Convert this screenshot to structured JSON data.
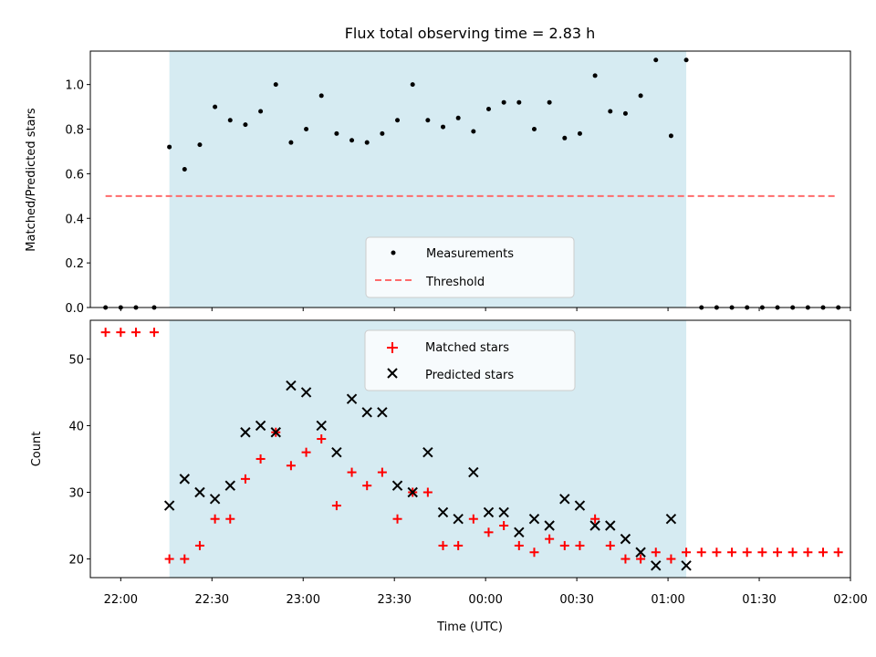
{
  "chart_data": [
    {
      "type": "scatter",
      "title": "Flux total observing time = 2.83 h",
      "ylabel": "Matched/Predicted stars",
      "xlabel": "",
      "xlim": [
        "21:50",
        "02:00"
      ],
      "ylim": [
        0,
        1.15
      ],
      "yticks": [
        "0.0",
        "0.2",
        "0.4",
        "0.6",
        "0.8",
        "1.0"
      ],
      "grid": false,
      "legend_position": "bottom-center",
      "shaded_span": {
        "start": "22:16",
        "end": "01:06",
        "color": "#add8e6"
      },
      "series": [
        {
          "name": "Measurements",
          "marker": "dot",
          "color": "#000000",
          "x": [
            "21:55",
            "22:00",
            "22:05",
            "22:11",
            "22:16",
            "22:21",
            "22:26",
            "22:31",
            "22:36",
            "22:41",
            "22:46",
            "22:51",
            "22:56",
            "23:01",
            "23:06",
            "23:11",
            "23:16",
            "23:21",
            "23:26",
            "23:31",
            "23:36",
            "23:41",
            "23:46",
            "23:51",
            "23:56",
            "00:01",
            "00:06",
            "00:11",
            "00:16",
            "00:21",
            "00:26",
            "00:31",
            "00:36",
            "00:41",
            "00:46",
            "00:51",
            "00:56",
            "01:01",
            "01:06",
            "01:11",
            "01:16",
            "01:21",
            "01:26",
            "01:31",
            "01:36",
            "01:41",
            "01:46",
            "01:51",
            "01:56"
          ],
          "y": [
            0,
            0,
            0,
            0,
            0.72,
            0.62,
            0.73,
            0.9,
            0.84,
            0.82,
            0.88,
            1.0,
            0.74,
            0.8,
            0.95,
            0.78,
            0.75,
            0.74,
            0.78,
            0.84,
            1.0,
            0.84,
            0.81,
            0.85,
            0.79,
            0.89,
            0.92,
            0.92,
            0.8,
            0.92,
            0.76,
            0.78,
            1.04,
            0.88,
            0.87,
            0.95,
            1.11,
            0.77,
            1.11,
            0,
            0,
            0,
            0,
            0,
            0,
            0,
            0,
            0,
            0
          ]
        },
        {
          "name": "Threshold",
          "marker": "dashed-line",
          "color": "#ff6b6b",
          "x": [
            "21:55",
            "01:56"
          ],
          "y": [
            0.5,
            0.5
          ]
        }
      ]
    },
    {
      "type": "scatter",
      "title": "",
      "ylabel": "Count",
      "xlabel": "Time (UTC)",
      "xlim": [
        "21:50",
        "02:00"
      ],
      "ylim": [
        17.2,
        55.8
      ],
      "yticks": [
        "20",
        "30",
        "40",
        "50"
      ],
      "xticks": [
        "22:00",
        "22:30",
        "23:00",
        "23:30",
        "00:00",
        "00:30",
        "01:00",
        "01:30",
        "02:00"
      ],
      "grid": false,
      "legend_position": "top-center",
      "shaded_span": {
        "start": "22:16",
        "end": "01:06",
        "color": "#add8e6"
      },
      "series": [
        {
          "name": "Matched stars",
          "marker": "plus",
          "color": "#ff0000",
          "x": [
            "21:55",
            "22:00",
            "22:05",
            "22:11",
            "22:16",
            "22:21",
            "22:26",
            "22:31",
            "22:36",
            "22:41",
            "22:46",
            "22:51",
            "22:56",
            "23:01",
            "23:06",
            "23:11",
            "23:16",
            "23:21",
            "23:26",
            "23:31",
            "23:36",
            "23:41",
            "23:46",
            "23:51",
            "23:56",
            "00:01",
            "00:06",
            "00:11",
            "00:16",
            "00:21",
            "00:26",
            "00:31",
            "00:36",
            "00:41",
            "00:46",
            "00:51",
            "00:56",
            "01:01",
            "01:06",
            "01:11",
            "01:16",
            "01:21",
            "01:26",
            "01:31",
            "01:36",
            "01:41",
            "01:46",
            "01:51",
            "01:56"
          ],
          "y": [
            54,
            54,
            54,
            54,
            20,
            20,
            22,
            26,
            26,
            32,
            35,
            39,
            34,
            36,
            38,
            28,
            33,
            31,
            33,
            26,
            30,
            30,
            22,
            22,
            26,
            24,
            25,
            22,
            21,
            23,
            22,
            22,
            26,
            22,
            20,
            20,
            21,
            20,
            21,
            21,
            21,
            21,
            21,
            21,
            21,
            21,
            21,
            21,
            21
          ]
        },
        {
          "name": "Predicted stars",
          "marker": "x",
          "color": "#000000",
          "x": [
            "22:16",
            "22:21",
            "22:26",
            "22:31",
            "22:36",
            "22:41",
            "22:46",
            "22:51",
            "22:56",
            "23:01",
            "23:06",
            "23:11",
            "23:16",
            "23:21",
            "23:26",
            "23:31",
            "23:36",
            "23:41",
            "23:46",
            "23:51",
            "23:56",
            "00:01",
            "00:06",
            "00:11",
            "00:16",
            "00:21",
            "00:26",
            "00:31",
            "00:36",
            "00:41",
            "00:46",
            "00:51",
            "00:56",
            "01:01",
            "01:06"
          ],
          "y": [
            28,
            32,
            30,
            29,
            31,
            39,
            40,
            39,
            46,
            45,
            40,
            36,
            44,
            42,
            42,
            31,
            30,
            36,
            27,
            26,
            33,
            27,
            27,
            24,
            26,
            25,
            29,
            28,
            25,
            25,
            23,
            21,
            19,
            26,
            19
          ]
        }
      ]
    }
  ]
}
